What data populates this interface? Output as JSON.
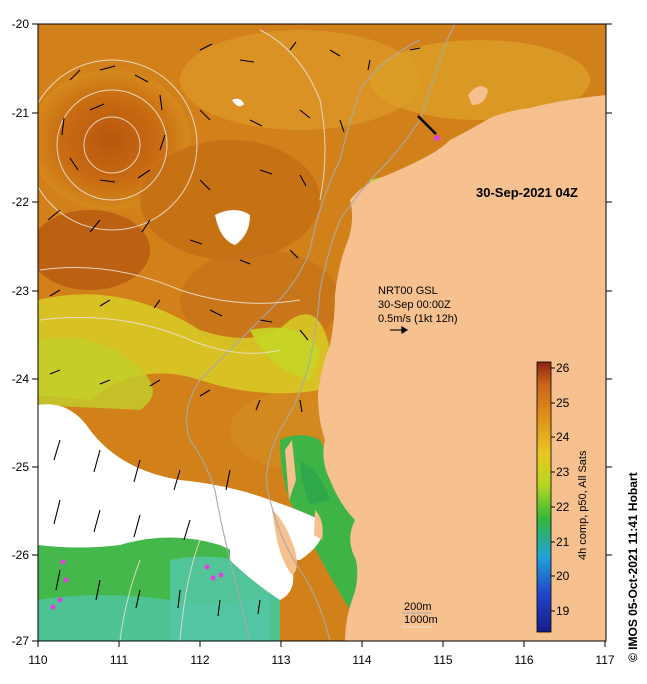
{
  "map": {
    "timestamp": "30-Sep-2021 04Z",
    "current_source": "NRT00 GSL",
    "current_time": "30-Sep 00:00Z",
    "current_scale": "0.5m/s (1kt 12h)",
    "depth_contours": [
      "200m",
      "1000m"
    ],
    "colorbar_label": "4h comp, p50, All Sats",
    "credit": "© IMOS 05-Oct-2021 11:41 Hobart",
    "longitude_ticks": [
      "110",
      "111",
      "112",
      "113",
      "114",
      "115",
      "116",
      "117"
    ],
    "latitude_ticks": [
      "-20",
      "-21",
      "-22",
      "-23",
      "-24",
      "-25",
      "-26",
      "-27"
    ],
    "colorbar_ticks": [
      "26",
      "25",
      "24",
      "23",
      "22",
      "21",
      "20",
      "19"
    ],
    "colors": {
      "land": "#f7c08f",
      "warm": "#c86b12",
      "mid": "#dc9a20",
      "cool_yellow": "#d9d31f",
      "green": "#39b93c",
      "teal": "#46c39c",
      "no_data": "#ffffff"
    }
  }
}
